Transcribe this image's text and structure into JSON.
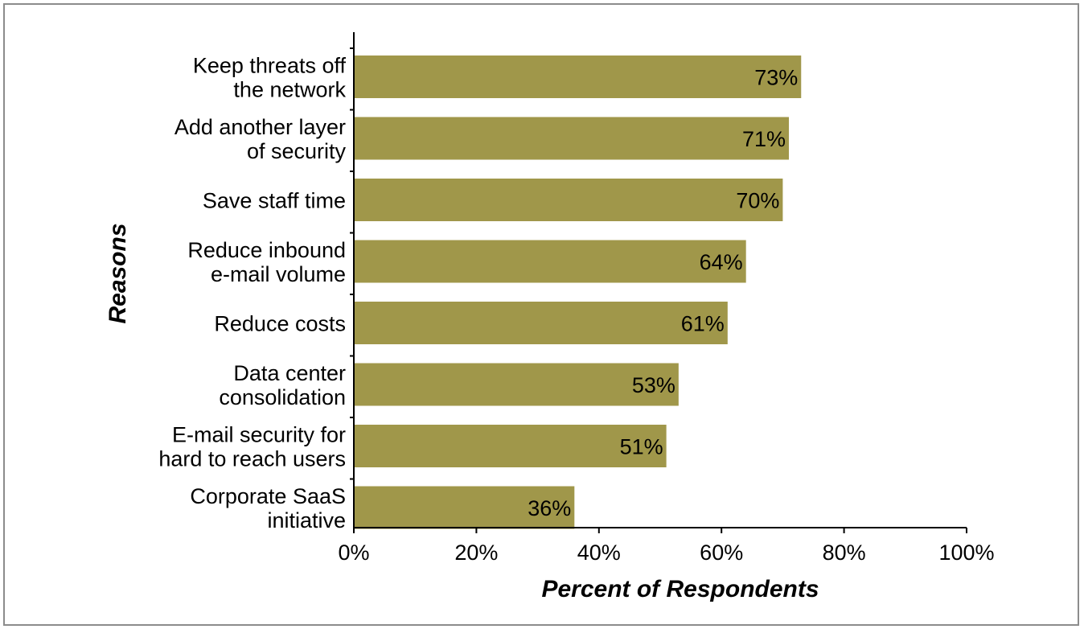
{
  "chart_data": {
    "type": "bar",
    "orientation": "horizontal",
    "categories": [
      [
        "Keep threats off",
        "the network"
      ],
      [
        "Add another layer",
        "of security"
      ],
      [
        "Save staff time"
      ],
      [
        "Reduce inbound",
        "e-mail volume"
      ],
      [
        "Reduce costs"
      ],
      [
        "Data center",
        "consolidation"
      ],
      [
        "E-mail security for",
        "hard to reach users"
      ],
      [
        "Corporate SaaS",
        "initiative"
      ]
    ],
    "values": [
      73,
      71,
      70,
      64,
      61,
      53,
      51,
      36
    ],
    "data_labels": [
      "73%",
      "71%",
      "70%",
      "64%",
      "61%",
      "53%",
      "51%",
      "36%"
    ],
    "xlabel": "Percent of Respondents",
    "ylabel": "Reasons",
    "xlim": [
      0,
      100
    ],
    "xticks": [
      0,
      20,
      40,
      60,
      80,
      100
    ],
    "xtick_labels": [
      "0%",
      "20%",
      "40%",
      "60%",
      "80%",
      "100%"
    ],
    "grid": false,
    "legend": "none",
    "colors": {
      "bar": "#a0974a",
      "axis": "#000000",
      "border": "#8c8c8c"
    }
  }
}
